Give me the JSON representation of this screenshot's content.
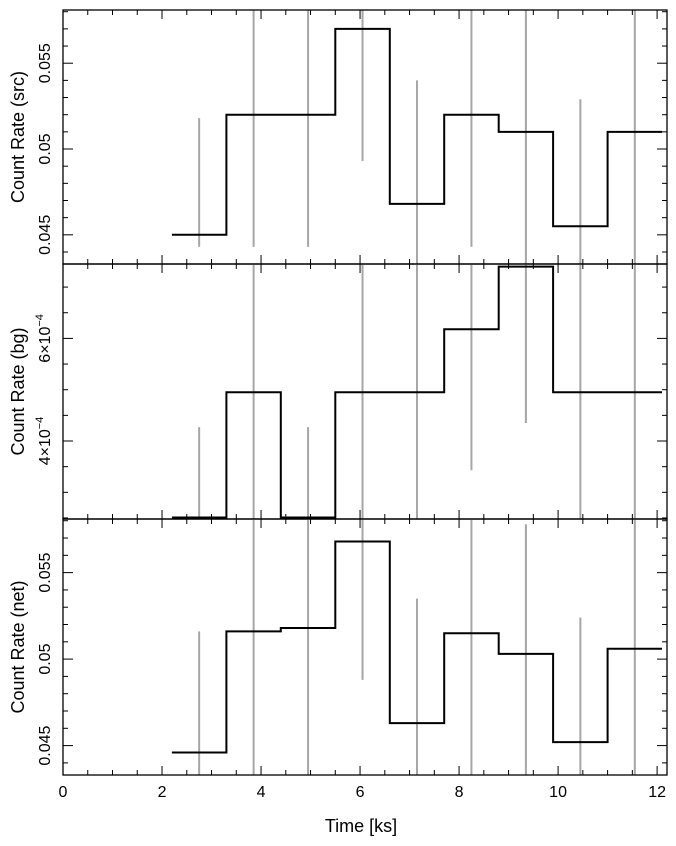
{
  "chart_data": {
    "type": "line",
    "style": "step-with-error-bars",
    "xlabel": "Time [ks]",
    "xlim": [
      0,
      12.2
    ],
    "x_ticks": [
      0,
      2,
      4,
      6,
      8,
      10,
      12
    ],
    "x_tick_labels": [
      "0",
      "2",
      "4",
      "6",
      "8",
      "10",
      "12"
    ],
    "bin_edges": [
      2.2,
      3.3,
      4.4,
      5.5,
      6.6,
      7.7,
      8.8,
      9.9,
      11.0,
      12.1
    ],
    "bin_centers": [
      2.75,
      3.85,
      4.95,
      6.05,
      7.15,
      8.25,
      9.35,
      10.45,
      11.55
    ],
    "error_bar_color": "#a6a6a6",
    "line_color": "#000000",
    "panels": [
      {
        "id": "src",
        "ylabel": "Count Rate (src)",
        "ylim": [
          0.0433,
          0.0581
        ],
        "y_ticks": [
          0.045,
          0.05,
          0.055
        ],
        "y_tick_labels": [
          "0.045",
          "0.05",
          "0.055"
        ],
        "y_minor_step": 0.001,
        "values": [
          0.045,
          0.052,
          0.052,
          0.057,
          0.0468,
          0.052,
          0.051,
          0.0455,
          0.051
        ],
        "err_low": [
          0.0443,
          0.0443,
          0.0443,
          0.0493,
          0.0433,
          0.0443,
          0.0433,
          0.0433,
          0.0433
        ],
        "err_high": [
          0.0518,
          0.0581,
          0.0581,
          0.0581,
          0.054,
          0.0581,
          0.0581,
          0.0529,
          0.0581
        ]
      },
      {
        "id": "bg",
        "ylabel": "Count Rate (bg)",
        "ylim": [
          0.000248,
          0.000745
        ],
        "y_ticks": [
          0.0004,
          0.0006
        ],
        "y_tick_labels": [
          {
            "mantissa": "4×10",
            "exponent": "−4"
          },
          {
            "mantissa": "6×10",
            "exponent": "−4"
          }
        ],
        "y_minor_step": 5e-05,
        "values": [
          0.000251,
          0.000495,
          0.000251,
          0.000495,
          0.000495,
          0.000618,
          0.00074,
          0.000495,
          0.000495
        ],
        "err_low": [
          0.000248,
          0.000248,
          0.000248,
          0.000248,
          0.000248,
          0.000343,
          0.000435,
          0.000248,
          0.000248
        ],
        "err_high": [
          0.000427,
          0.000745,
          0.000427,
          0.000745,
          0.000745,
          0.000745,
          0.000745,
          0.000745,
          0.000745
        ]
      },
      {
        "id": "net",
        "ylabel": "Count Rate (net)",
        "ylim": [
          0.0433,
          0.0581
        ],
        "y_ticks": [
          0.045,
          0.05,
          0.055
        ],
        "y_tick_labels": [
          "0.045",
          "0.05",
          "0.055"
        ],
        "y_minor_step": 0.001,
        "values": [
          0.0446,
          0.0516,
          0.0518,
          0.0568,
          0.0463,
          0.0515,
          0.0503,
          0.0452,
          0.0506
        ],
        "err_low": [
          0.0433,
          0.0433,
          0.0433,
          0.0488,
          0.0433,
          0.0433,
          0.0433,
          0.0433,
          0.0433
        ],
        "err_high": [
          0.0516,
          0.0581,
          0.0581,
          0.0581,
          0.0535,
          0.0581,
          0.0578,
          0.0524,
          0.0581
        ]
      }
    ]
  }
}
